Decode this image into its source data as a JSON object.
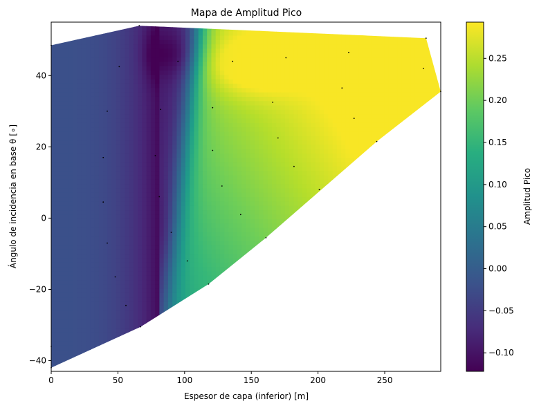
{
  "chart_data": {
    "type": "heatmap",
    "title": "Mapa de Amplitud Pico",
    "xlabel": "Espesor de capa (inferior) [m]",
    "ylabel": "Ángulo de incidencia en base θ [∘]",
    "colorbar_label": "Amplitud Pico",
    "colormap": "viridis",
    "xlim": [
      0,
      292
    ],
    "ylim": [
      -43,
      55
    ],
    "clim": [
      -0.122,
      0.293
    ],
    "x_ticks": [
      0,
      50,
      100,
      150,
      200,
      250
    ],
    "x_tick_labels": [
      "0",
      "50",
      "100",
      "150",
      "200",
      "250"
    ],
    "y_ticks": [
      -40,
      -20,
      0,
      20,
      40
    ],
    "y_tick_labels": [
      "−40",
      "−20",
      "0",
      "20",
      "40"
    ],
    "colorbar_ticks": [
      -0.1,
      -0.05,
      0.0,
      0.05,
      0.1,
      0.15,
      0.2,
      0.25
    ],
    "colorbar_tick_labels": [
      "−0.10",
      "−0.05",
      "0.00",
      "0.05",
      "0.10",
      "0.15",
      "0.20",
      "0.25"
    ],
    "hull": [
      [
        0,
        48.5
      ],
      [
        66,
        54
      ],
      [
        281,
        50.5
      ],
      [
        292,
        35.5
      ],
      [
        244,
        21.5
      ],
      [
        161,
        -5.5
      ],
      [
        118,
        -18.5
      ],
      [
        67,
        -30.5
      ],
      [
        0,
        -42
      ]
    ],
    "sample_points": [
      [
        0,
        48.5
      ],
      [
        66,
        54
      ],
      [
        281,
        50.5
      ],
      [
        292,
        35.5
      ],
      [
        244,
        21.5
      ],
      [
        161,
        -5.5
      ],
      [
        118,
        -18.5
      ],
      [
        67,
        -30.5
      ],
      [
        0,
        -42
      ],
      [
        51,
        42.5
      ],
      [
        95,
        44
      ],
      [
        136,
        44
      ],
      [
        176,
        45
      ],
      [
        223,
        46.5
      ],
      [
        279,
        42
      ],
      [
        42,
        30
      ],
      [
        82,
        30.5
      ],
      [
        121,
        31
      ],
      [
        166,
        32.5
      ],
      [
        218,
        36.5
      ],
      [
        39,
        17
      ],
      [
        78,
        17.5
      ],
      [
        121,
        19
      ],
      [
        170,
        22.5
      ],
      [
        227,
        28
      ],
      [
        39,
        4.5
      ],
      [
        81,
        6
      ],
      [
        128,
        9
      ],
      [
        182,
        14.5
      ],
      [
        201,
        8
      ],
      [
        42,
        -7
      ],
      [
        90,
        -4
      ],
      [
        142,
        1
      ],
      [
        48,
        -16.5
      ],
      [
        102,
        -12
      ],
      [
        56,
        -24.5
      ],
      [
        0,
        -36
      ]
    ]
  }
}
